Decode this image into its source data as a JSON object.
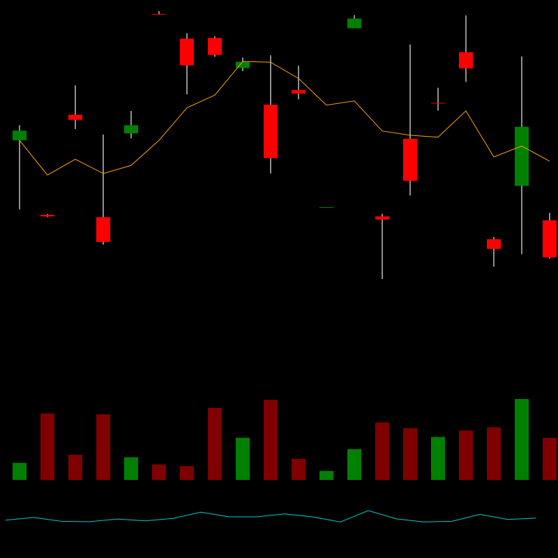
{
  "chart_data": [
    {
      "type": "candlestick",
      "ylim": [
        0,
        100
      ],
      "colors": {
        "up": "#008000",
        "down": "#ff0000",
        "wick": "#c0c0c0",
        "ma": "#ffa500"
      },
      "grid": false,
      "candles": [
        {
          "open": 65.5,
          "close": 68.0,
          "high": 69.4,
          "low": 47.6
        },
        {
          "open": 46.2,
          "close": 45.8,
          "high": 46.4,
          "low": 45.6
        },
        {
          "open": 72.1,
          "close": 70.8,
          "high": 79.7,
          "low": 68.4
        },
        {
          "open": 45.6,
          "close": 39.2,
          "high": 67.0,
          "low": 38.5
        },
        {
          "open": 67.3,
          "close": 69.4,
          "high": 73.1,
          "low": 66.0
        },
        {
          "open": 98.2,
          "close": 98.1,
          "high": 98.9,
          "low": 98.0
        },
        {
          "open": 91.8,
          "close": 84.9,
          "high": 93.2,
          "low": 77.4
        },
        {
          "open": 92.0,
          "close": 87.6,
          "high": 92.4,
          "low": 87.1
        },
        {
          "open": 84.2,
          "close": 85.8,
          "high": 86.9,
          "low": 83.4
        },
        {
          "open": 74.7,
          "close": 60.9,
          "high": 87.5,
          "low": 56.9
        },
        {
          "open": 78.5,
          "close": 77.6,
          "high": 84.8,
          "low": 76.1
        },
        {
          "open": 48.1,
          "close": 48.2,
          "high": 48.2,
          "low": 48.0
        },
        {
          "open": 94.5,
          "close": 97.0,
          "high": 97.9,
          "low": 94.5
        },
        {
          "open": 45.8,
          "close": 45.0,
          "high": 46.5,
          "low": 29.6
        },
        {
          "open": 65.9,
          "close": 55.0,
          "high": 90.3,
          "low": 51.2
        },
        {
          "open": 75.2,
          "close": 75.1,
          "high": 79.1,
          "low": 73.2
        },
        {
          "open": 88.3,
          "close": 84.1,
          "high": 97.8,
          "low": 80.6
        },
        {
          "open": 39.9,
          "close": 37.4,
          "high": 40.5,
          "low": 32.8
        },
        {
          "open": 53.7,
          "close": 69.0,
          "high": 87.2,
          "low": 36.0
        },
        {
          "open": 44.8,
          "close": 35.2,
          "high": 46.7,
          "low": 34.9
        }
      ],
      "moving_average": [
        65.5,
        56.5,
        60.6,
        56.9,
        59.0,
        65.5,
        73.9,
        77.2,
        85.9,
        85.7,
        81.5,
        74.6,
        75.7,
        67.9,
        66.8,
        66.3,
        73.1,
        61.2,
        64.0,
        60.1
      ]
    },
    {
      "type": "bar",
      "ylim": [
        0,
        100
      ],
      "colors": {
        "up": "#008000",
        "down": "#800000"
      },
      "values": [
        21,
        82,
        31,
        81,
        28,
        19,
        17,
        89,
        52,
        99,
        26,
        11,
        38,
        71,
        64,
        53,
        61,
        65,
        100,
        52
      ],
      "directions": [
        "up",
        "down",
        "down",
        "down",
        "up",
        "down",
        "down",
        "down",
        "up",
        "down",
        "down",
        "up",
        "up",
        "down",
        "down",
        "up",
        "down",
        "down",
        "up",
        "down"
      ]
    },
    {
      "type": "line",
      "ylim": [
        0,
        100
      ],
      "colors": {
        "line": "#00cccc"
      },
      "values": [
        57,
        69,
        52,
        50,
        62,
        54,
        65,
        93,
        72,
        72,
        85,
        72,
        49,
        100,
        63,
        49,
        52,
        83,
        60,
        66
      ]
    }
  ]
}
